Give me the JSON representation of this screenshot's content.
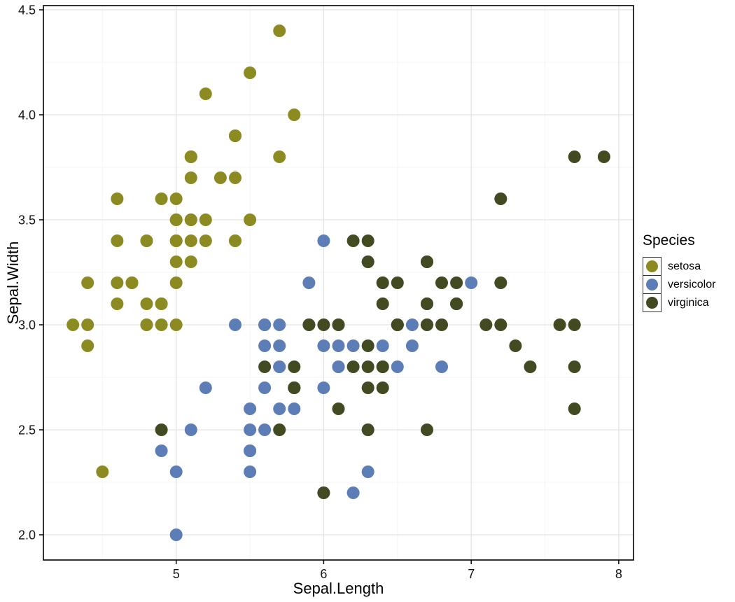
{
  "chart_data": {
    "type": "scatter",
    "title": "",
    "xlabel": "Sepal.Length",
    "ylabel": "Sepal.Width",
    "xlim": [
      4.1,
      8.1
    ],
    "ylim": [
      1.88,
      4.52
    ],
    "x_ticks": [
      5,
      6,
      7,
      8
    ],
    "x_tick_labels": [
      "5",
      "6",
      "7",
      "8"
    ],
    "y_ticks": [
      2.0,
      2.5,
      3.0,
      3.5,
      4.0,
      4.5
    ],
    "y_tick_labels": [
      "2.0",
      "2.5",
      "3.0",
      "3.5",
      "4.0",
      "4.5"
    ],
    "x_minor_ticks": [
      4.5,
      5.5,
      6.5,
      7.5
    ],
    "y_minor_ticks": [
      2.25,
      2.75,
      3.25,
      3.75,
      4.25
    ],
    "grid": true,
    "legend": {
      "title": "Species",
      "position": "right"
    },
    "series": [
      {
        "name": "setosa",
        "color": "#8B8B22",
        "points": [
          [
            5.1,
            3.5
          ],
          [
            4.9,
            3.0
          ],
          [
            4.7,
            3.2
          ],
          [
            4.6,
            3.1
          ],
          [
            5.0,
            3.6
          ],
          [
            5.4,
            3.9
          ],
          [
            4.6,
            3.4
          ],
          [
            5.0,
            3.4
          ],
          [
            4.4,
            2.9
          ],
          [
            4.9,
            3.1
          ],
          [
            5.4,
            3.7
          ],
          [
            4.8,
            3.4
          ],
          [
            4.8,
            3.0
          ],
          [
            4.3,
            3.0
          ],
          [
            5.8,
            4.0
          ],
          [
            5.7,
            4.4
          ],
          [
            5.4,
            3.9
          ],
          [
            5.1,
            3.5
          ],
          [
            5.7,
            3.8
          ],
          [
            5.1,
            3.8
          ],
          [
            5.4,
            3.4
          ],
          [
            5.1,
            3.7
          ],
          [
            4.6,
            3.6
          ],
          [
            5.1,
            3.3
          ],
          [
            4.8,
            3.4
          ],
          [
            5.0,
            3.0
          ],
          [
            5.0,
            3.4
          ],
          [
            5.2,
            3.5
          ],
          [
            5.2,
            3.4
          ],
          [
            4.7,
            3.2
          ],
          [
            4.8,
            3.1
          ],
          [
            5.4,
            3.4
          ],
          [
            5.2,
            4.1
          ],
          [
            5.5,
            4.2
          ],
          [
            4.9,
            3.1
          ],
          [
            5.0,
            3.2
          ],
          [
            5.5,
            3.5
          ],
          [
            4.9,
            3.6
          ],
          [
            4.4,
            3.0
          ],
          [
            5.1,
            3.4
          ],
          [
            5.0,
            3.5
          ],
          [
            4.5,
            2.3
          ],
          [
            4.4,
            3.2
          ],
          [
            5.0,
            3.5
          ],
          [
            5.1,
            3.8
          ],
          [
            4.8,
            3.0
          ],
          [
            5.1,
            3.8
          ],
          [
            4.6,
            3.2
          ],
          [
            5.3,
            3.7
          ],
          [
            5.0,
            3.3
          ]
        ]
      },
      {
        "name": "versicolor",
        "color": "#5C7DB5",
        "points": [
          [
            7.0,
            3.2
          ],
          [
            6.4,
            3.2
          ],
          [
            6.9,
            3.1
          ],
          [
            5.5,
            2.3
          ],
          [
            6.5,
            2.8
          ],
          [
            5.7,
            2.8
          ],
          [
            6.3,
            3.3
          ],
          [
            4.9,
            2.4
          ],
          [
            6.6,
            2.9
          ],
          [
            5.2,
            2.7
          ],
          [
            5.0,
            2.0
          ],
          [
            5.9,
            3.0
          ],
          [
            6.0,
            2.2
          ],
          [
            6.1,
            2.9
          ],
          [
            5.6,
            2.9
          ],
          [
            6.7,
            3.1
          ],
          [
            5.6,
            3.0
          ],
          [
            5.8,
            2.7
          ],
          [
            6.2,
            2.2
          ],
          [
            5.6,
            2.5
          ],
          [
            5.9,
            3.2
          ],
          [
            6.1,
            2.8
          ],
          [
            6.3,
            2.5
          ],
          [
            6.1,
            2.8
          ],
          [
            6.4,
            2.9
          ],
          [
            6.6,
            3.0
          ],
          [
            6.8,
            2.8
          ],
          [
            6.7,
            3.0
          ],
          [
            6.0,
            2.9
          ],
          [
            5.7,
            2.6
          ],
          [
            5.5,
            2.4
          ],
          [
            5.5,
            2.4
          ],
          [
            5.8,
            2.7
          ],
          [
            6.0,
            2.7
          ],
          [
            5.4,
            3.0
          ],
          [
            6.0,
            3.4
          ],
          [
            6.7,
            3.1
          ],
          [
            6.3,
            2.3
          ],
          [
            5.6,
            3.0
          ],
          [
            5.5,
            2.5
          ],
          [
            5.5,
            2.6
          ],
          [
            6.1,
            3.0
          ],
          [
            5.8,
            2.6
          ],
          [
            5.0,
            2.3
          ],
          [
            5.6,
            2.7
          ],
          [
            5.7,
            3.0
          ],
          [
            5.7,
            2.9
          ],
          [
            6.2,
            2.9
          ],
          [
            5.1,
            2.5
          ],
          [
            5.7,
            2.8
          ]
        ]
      },
      {
        "name": "virginica",
        "color": "#414A21",
        "points": [
          [
            6.3,
            3.3
          ],
          [
            5.8,
            2.7
          ],
          [
            7.1,
            3.0
          ],
          [
            6.3,
            2.9
          ],
          [
            6.5,
            3.0
          ],
          [
            7.6,
            3.0
          ],
          [
            4.9,
            2.5
          ],
          [
            7.3,
            2.9
          ],
          [
            6.7,
            2.5
          ],
          [
            7.2,
            3.6
          ],
          [
            6.5,
            3.2
          ],
          [
            6.4,
            2.7
          ],
          [
            6.8,
            3.0
          ],
          [
            5.7,
            2.5
          ],
          [
            5.8,
            2.8
          ],
          [
            6.4,
            3.2
          ],
          [
            6.5,
            3.0
          ],
          [
            7.7,
            3.8
          ],
          [
            7.7,
            2.6
          ],
          [
            6.0,
            2.2
          ],
          [
            6.9,
            3.2
          ],
          [
            5.6,
            2.8
          ],
          [
            7.7,
            2.8
          ],
          [
            6.3,
            2.7
          ],
          [
            6.7,
            3.3
          ],
          [
            7.2,
            3.2
          ],
          [
            6.2,
            2.8
          ],
          [
            6.1,
            3.0
          ],
          [
            6.4,
            2.8
          ],
          [
            7.2,
            3.0
          ],
          [
            7.4,
            2.8
          ],
          [
            7.9,
            3.8
          ],
          [
            6.4,
            2.8
          ],
          [
            6.3,
            2.8
          ],
          [
            6.1,
            2.6
          ],
          [
            7.7,
            3.0
          ],
          [
            6.3,
            3.4
          ],
          [
            6.4,
            3.1
          ],
          [
            6.0,
            3.0
          ],
          [
            6.9,
            3.1
          ],
          [
            6.7,
            3.1
          ],
          [
            6.9,
            3.1
          ],
          [
            5.8,
            2.7
          ],
          [
            6.8,
            3.2
          ],
          [
            6.7,
            3.3
          ],
          [
            6.7,
            3.0
          ],
          [
            6.3,
            2.5
          ],
          [
            6.5,
            3.0
          ],
          [
            6.2,
            3.4
          ],
          [
            5.9,
            3.0
          ]
        ]
      }
    ]
  }
}
